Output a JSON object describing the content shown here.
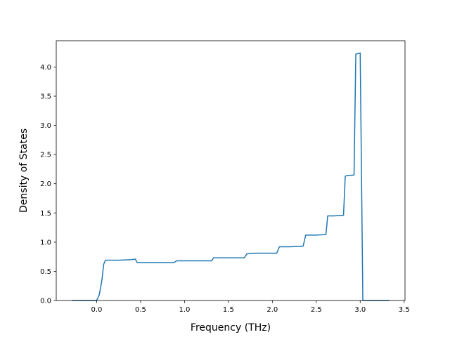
{
  "chart_data": {
    "type": "line",
    "title": "",
    "xlabel": "Frequency (THz)",
    "ylabel": "Density of States",
    "xlim": [
      -0.46,
      3.51
    ],
    "ylim": [
      0.0,
      4.45
    ],
    "xticks": [
      0.0,
      0.5,
      1.0,
      1.5,
      2.0,
      2.5,
      3.0,
      3.5
    ],
    "xtick_labels": [
      "0.0",
      "0.5",
      "1.0",
      "1.5",
      "2.0",
      "2.5",
      "3.0",
      "3.5"
    ],
    "yticks": [
      0.0,
      0.5,
      1.0,
      1.5,
      2.0,
      2.5,
      3.0,
      3.5,
      4.0
    ],
    "ytick_labels": [
      "0.0",
      "0.5",
      "1.0",
      "1.5",
      "2.0",
      "2.5",
      "3.0",
      "3.5",
      "4.0"
    ],
    "grid": false,
    "line_color": "#1f77b4",
    "series": [
      {
        "x": [
          -0.28,
          0.0,
          0.03,
          0.06,
          0.08,
          0.1,
          0.25,
          0.4,
          0.44,
          0.46,
          0.6,
          0.88,
          0.91,
          1.0,
          1.2,
          1.31,
          1.33,
          1.5,
          1.68,
          1.71,
          1.8,
          2.05,
          2.08,
          2.2,
          2.35,
          2.38,
          2.5,
          2.61,
          2.63,
          2.7,
          2.81,
          2.83,
          2.85,
          2.93,
          2.95,
          3.0,
          3.03,
          3.1,
          3.33
        ],
        "y": [
          0.0,
          0.0,
          0.1,
          0.35,
          0.62,
          0.69,
          0.69,
          0.7,
          0.71,
          0.65,
          0.65,
          0.65,
          0.68,
          0.68,
          0.68,
          0.68,
          0.73,
          0.73,
          0.73,
          0.8,
          0.81,
          0.81,
          0.92,
          0.92,
          0.93,
          1.12,
          1.12,
          1.13,
          1.45,
          1.45,
          1.46,
          2.13,
          2.14,
          2.15,
          4.22,
          4.24,
          0.0,
          0.0,
          0.0
        ]
      }
    ]
  }
}
